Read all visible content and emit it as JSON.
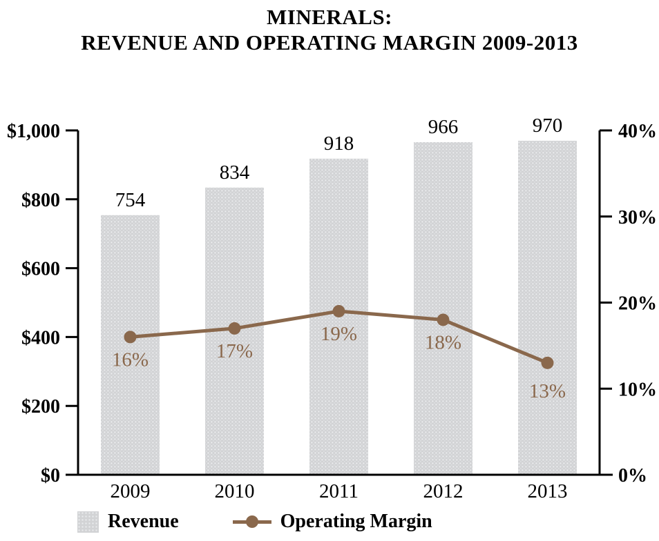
{
  "title": {
    "line1": "MINERALS:",
    "line2": "REVENUE AND OPERATING MARGIN 2009-2013"
  },
  "chart_data": {
    "type": "bar",
    "subtype": "combo-bar-line-dual-axis",
    "categories": [
      "2009",
      "2010",
      "2011",
      "2012",
      "2013"
    ],
    "series": [
      {
        "name": "Revenue",
        "type": "bar",
        "axis": "left",
        "values": [
          754,
          834,
          918,
          966,
          970
        ],
        "labels": [
          "754",
          "834",
          "918",
          "966",
          "970"
        ],
        "color": "#d2d3d5"
      },
      {
        "name": "Operating Margin",
        "type": "line",
        "axis": "right",
        "values": [
          16,
          17,
          19,
          18,
          13
        ],
        "labels": [
          "16%",
          "17%",
          "19%",
          "18%",
          "13%"
        ],
        "color": "#8a684c"
      }
    ],
    "left_axis": {
      "tick_values": [
        0,
        200,
        400,
        600,
        800,
        1000
      ],
      "tick_labels": [
        "$0",
        "$200",
        "$400",
        "$600",
        "$800",
        "$1,000"
      ],
      "min": 0,
      "max": 1000
    },
    "right_axis": {
      "tick_values": [
        0,
        10,
        20,
        30,
        40
      ],
      "tick_labels": [
        "0%",
        "10%",
        "20%",
        "30%",
        "40%"
      ],
      "min": 0,
      "max": 40
    },
    "grid": false,
    "legend_position": "bottom-left"
  },
  "legend": {
    "revenue_label": "Revenue",
    "margin_label": "Operating Margin"
  },
  "colors": {
    "bar_fill": "#d2d3d5",
    "bar_dot": "#ecedef",
    "line": "#8a684c",
    "axis": "#000000",
    "text": "#000000"
  }
}
